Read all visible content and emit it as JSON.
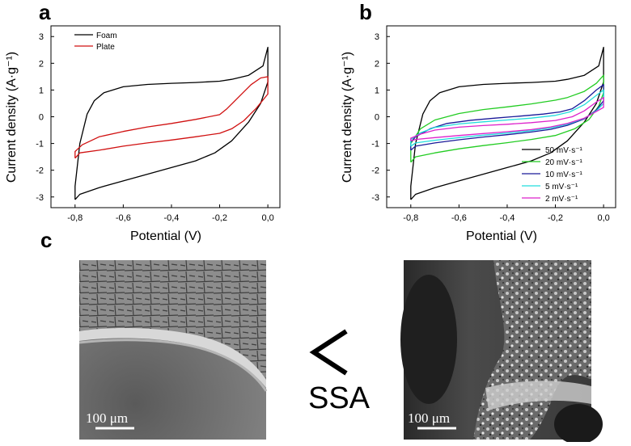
{
  "panels": {
    "a": "a",
    "b": "b",
    "c": "c"
  },
  "chart_data": [
    {
      "id": "a",
      "type": "line",
      "xlabel": "Potential  (V)",
      "ylabel": "Current density (A·g⁻¹)",
      "xlim": [
        -0.9,
        0.05
      ],
      "ylim": [
        -3.4,
        3.4
      ],
      "xticks": [
        -0.8,
        -0.6,
        -0.4,
        -0.2,
        0.0
      ],
      "xtick_labels": [
        "-0,8",
        "-0,6",
        "-0,4",
        "-0,2",
        "0,0"
      ],
      "yticks": [
        -3,
        -2,
        -1,
        0,
        1,
        2,
        3
      ],
      "ytick_labels": [
        "-3",
        "-2",
        "-1",
        "0",
        "1",
        "2",
        "3"
      ],
      "legend_position": "top-left",
      "series": [
        {
          "name": "Foam",
          "color": "#000000",
          "points": [
            [
              -0.8,
              -3.1
            ],
            [
              -0.78,
              -2.9
            ],
            [
              -0.7,
              -2.65
            ],
            [
              -0.6,
              -2.4
            ],
            [
              -0.5,
              -2.15
            ],
            [
              -0.4,
              -1.9
            ],
            [
              -0.3,
              -1.65
            ],
            [
              -0.22,
              -1.35
            ],
            [
              -0.15,
              -0.9
            ],
            [
              -0.08,
              -0.2
            ],
            [
              -0.03,
              0.5
            ],
            [
              0.0,
              1.3
            ],
            [
              0.0,
              2.6
            ],
            [
              -0.02,
              1.9
            ],
            [
              -0.08,
              1.55
            ],
            [
              -0.15,
              1.4
            ],
            [
              -0.2,
              1.33
            ],
            [
              -0.3,
              1.28
            ],
            [
              -0.4,
              1.25
            ],
            [
              -0.5,
              1.21
            ],
            [
              -0.6,
              1.12
            ],
            [
              -0.68,
              0.9
            ],
            [
              -0.72,
              0.6
            ],
            [
              -0.75,
              0.1
            ],
            [
              -0.78,
              -1.0
            ],
            [
              -0.8,
              -2.6
            ],
            [
              -0.8,
              -3.1
            ]
          ]
        },
        {
          "name": "Plate",
          "color": "#d01010",
          "points": [
            [
              -0.8,
              -1.55
            ],
            [
              -0.78,
              -1.35
            ],
            [
              -0.7,
              -1.25
            ],
            [
              -0.6,
              -1.1
            ],
            [
              -0.5,
              -0.98
            ],
            [
              -0.4,
              -0.87
            ],
            [
              -0.3,
              -0.75
            ],
            [
              -0.2,
              -0.62
            ],
            [
              -0.15,
              -0.45
            ],
            [
              -0.1,
              -0.15
            ],
            [
              -0.05,
              0.3
            ],
            [
              0.0,
              0.85
            ],
            [
              0.0,
              1.5
            ],
            [
              -0.03,
              1.45
            ],
            [
              -0.07,
              1.2
            ],
            [
              -0.12,
              0.75
            ],
            [
              -0.17,
              0.3
            ],
            [
              -0.2,
              0.08
            ],
            [
              -0.3,
              -0.1
            ],
            [
              -0.4,
              -0.25
            ],
            [
              -0.5,
              -0.38
            ],
            [
              -0.6,
              -0.55
            ],
            [
              -0.7,
              -0.75
            ],
            [
              -0.77,
              -1.05
            ],
            [
              -0.8,
              -1.3
            ],
            [
              -0.8,
              -1.55
            ]
          ]
        }
      ]
    },
    {
      "id": "b",
      "type": "line",
      "xlabel": "Potential  (V)",
      "ylabel": "Current density (A·g⁻¹)",
      "xlim": [
        -0.9,
        0.05
      ],
      "ylim": [
        -3.4,
        3.4
      ],
      "xticks": [
        -0.8,
        -0.6,
        -0.4,
        -0.2,
        0.0
      ],
      "xtick_labels": [
        "-0,8",
        "-0,6",
        "-0,4",
        "-0,2",
        "0,0"
      ],
      "yticks": [
        -3,
        -2,
        -1,
        0,
        1,
        2,
        3
      ],
      "ytick_labels": [
        "-3",
        "-2",
        "-1",
        "0",
        "1",
        "2",
        "3"
      ],
      "legend_position": "bottom-right",
      "series": [
        {
          "name": "50 mV·s⁻¹",
          "color": "#000000",
          "points": [
            [
              -0.8,
              -3.1
            ],
            [
              -0.78,
              -2.9
            ],
            [
              -0.7,
              -2.65
            ],
            [
              -0.6,
              -2.4
            ],
            [
              -0.5,
              -2.15
            ],
            [
              -0.4,
              -1.9
            ],
            [
              -0.3,
              -1.65
            ],
            [
              -0.22,
              -1.35
            ],
            [
              -0.15,
              -0.9
            ],
            [
              -0.08,
              -0.2
            ],
            [
              -0.03,
              0.5
            ],
            [
              0.0,
              1.3
            ],
            [
              0.0,
              2.6
            ],
            [
              -0.02,
              1.9
            ],
            [
              -0.08,
              1.55
            ],
            [
              -0.15,
              1.4
            ],
            [
              -0.2,
              1.33
            ],
            [
              -0.3,
              1.28
            ],
            [
              -0.4,
              1.25
            ],
            [
              -0.5,
              1.21
            ],
            [
              -0.6,
              1.12
            ],
            [
              -0.68,
              0.9
            ],
            [
              -0.72,
              0.6
            ],
            [
              -0.75,
              0.1
            ],
            [
              -0.78,
              -1.0
            ],
            [
              -0.8,
              -2.6
            ],
            [
              -0.8,
              -3.1
            ]
          ]
        },
        {
          "name": "20 mV·s⁻¹",
          "color": "#22cc22",
          "points": [
            [
              -0.8,
              -1.7
            ],
            [
              -0.78,
              -1.5
            ],
            [
              -0.7,
              -1.35
            ],
            [
              -0.6,
              -1.2
            ],
            [
              -0.5,
              -1.08
            ],
            [
              -0.4,
              -0.97
            ],
            [
              -0.3,
              -0.85
            ],
            [
              -0.2,
              -0.7
            ],
            [
              -0.12,
              -0.45
            ],
            [
              -0.06,
              -0.1
            ],
            [
              -0.02,
              0.4
            ],
            [
              0.0,
              0.9
            ],
            [
              0.0,
              1.55
            ],
            [
              -0.03,
              1.25
            ],
            [
              -0.08,
              0.95
            ],
            [
              -0.15,
              0.72
            ],
            [
              -0.2,
              0.62
            ],
            [
              -0.3,
              0.48
            ],
            [
              -0.4,
              0.37
            ],
            [
              -0.5,
              0.27
            ],
            [
              -0.6,
              0.12
            ],
            [
              -0.7,
              -0.12
            ],
            [
              -0.76,
              -0.45
            ],
            [
              -0.8,
              -1.0
            ],
            [
              -0.8,
              -1.7
            ]
          ]
        },
        {
          "name": "10 mV·s⁻¹",
          "color": "#1a1a99",
          "points": [
            [
              -0.8,
              -1.25
            ],
            [
              -0.78,
              -1.1
            ],
            [
              -0.7,
              -0.98
            ],
            [
              -0.6,
              -0.86
            ],
            [
              -0.5,
              -0.76
            ],
            [
              -0.4,
              -0.67
            ],
            [
              -0.3,
              -0.57
            ],
            [
              -0.22,
              -0.47
            ],
            [
              -0.15,
              -0.32
            ],
            [
              -0.08,
              -0.08
            ],
            [
              -0.03,
              0.25
            ],
            [
              0.0,
              0.6
            ],
            [
              0.0,
              1.2
            ],
            [
              -0.03,
              1.0
            ],
            [
              -0.08,
              0.6
            ],
            [
              -0.13,
              0.3
            ],
            [
              -0.18,
              0.18
            ],
            [
              -0.25,
              0.1
            ],
            [
              -0.35,
              0.02
            ],
            [
              -0.45,
              -0.05
            ],
            [
              -0.55,
              -0.13
            ],
            [
              -0.65,
              -0.25
            ],
            [
              -0.72,
              -0.45
            ],
            [
              -0.78,
              -0.75
            ],
            [
              -0.8,
              -0.95
            ],
            [
              -0.8,
              -1.25
            ]
          ]
        },
        {
          "name": "5 mV·s⁻¹",
          "color": "#22dddd",
          "points": [
            [
              -0.8,
              -1.1
            ],
            [
              -0.78,
              -0.98
            ],
            [
              -0.7,
              -0.88
            ],
            [
              -0.6,
              -0.78
            ],
            [
              -0.5,
              -0.69
            ],
            [
              -0.4,
              -0.61
            ],
            [
              -0.3,
              -0.52
            ],
            [
              -0.22,
              -0.42
            ],
            [
              -0.15,
              -0.28
            ],
            [
              -0.08,
              -0.06
            ],
            [
              -0.03,
              0.22
            ],
            [
              0.0,
              0.5
            ],
            [
              0.0,
              1.0
            ],
            [
              -0.03,
              0.8
            ],
            [
              -0.08,
              0.45
            ],
            [
              -0.14,
              0.18
            ],
            [
              -0.2,
              0.05
            ],
            [
              -0.3,
              -0.05
            ],
            [
              -0.4,
              -0.12
            ],
            [
              -0.5,
              -0.19
            ],
            [
              -0.6,
              -0.27
            ],
            [
              -0.7,
              -0.4
            ],
            [
              -0.76,
              -0.6
            ],
            [
              -0.8,
              -0.85
            ],
            [
              -0.8,
              -1.1
            ]
          ]
        },
        {
          "name": "2 mV·s⁻¹",
          "color": "#dd22cc",
          "points": [
            [
              -0.8,
              -0.9
            ],
            [
              -0.78,
              -0.85
            ],
            [
              -0.7,
              -0.78
            ],
            [
              -0.6,
              -0.7
            ],
            [
              -0.5,
              -0.63
            ],
            [
              -0.4,
              -0.56
            ],
            [
              -0.3,
              -0.48
            ],
            [
              -0.22,
              -0.38
            ],
            [
              -0.15,
              -0.25
            ],
            [
              -0.08,
              -0.05
            ],
            [
              -0.03,
              0.2
            ],
            [
              0.0,
              0.35
            ],
            [
              0.0,
              0.72
            ],
            [
              -0.03,
              0.55
            ],
            [
              -0.08,
              0.22
            ],
            [
              -0.13,
              0.0
            ],
            [
              -0.2,
              -0.14
            ],
            [
              -0.3,
              -0.22
            ],
            [
              -0.4,
              -0.28
            ],
            [
              -0.5,
              -0.33
            ],
            [
              -0.6,
              -0.39
            ],
            [
              -0.7,
              -0.5
            ],
            [
              -0.76,
              -0.65
            ],
            [
              -0.8,
              -0.8
            ],
            [
              -0.8,
              -0.9
            ]
          ]
        }
      ]
    }
  ],
  "panel_c": {
    "left_image": "SEM micrograph of plate electrode cross-section",
    "right_image": "SEM micrograph of foam electrode strut",
    "comparison_symbol": "<",
    "comparison_label": "SSA",
    "scalebar_left": "100 μm",
    "scalebar_right": "100 μm"
  }
}
